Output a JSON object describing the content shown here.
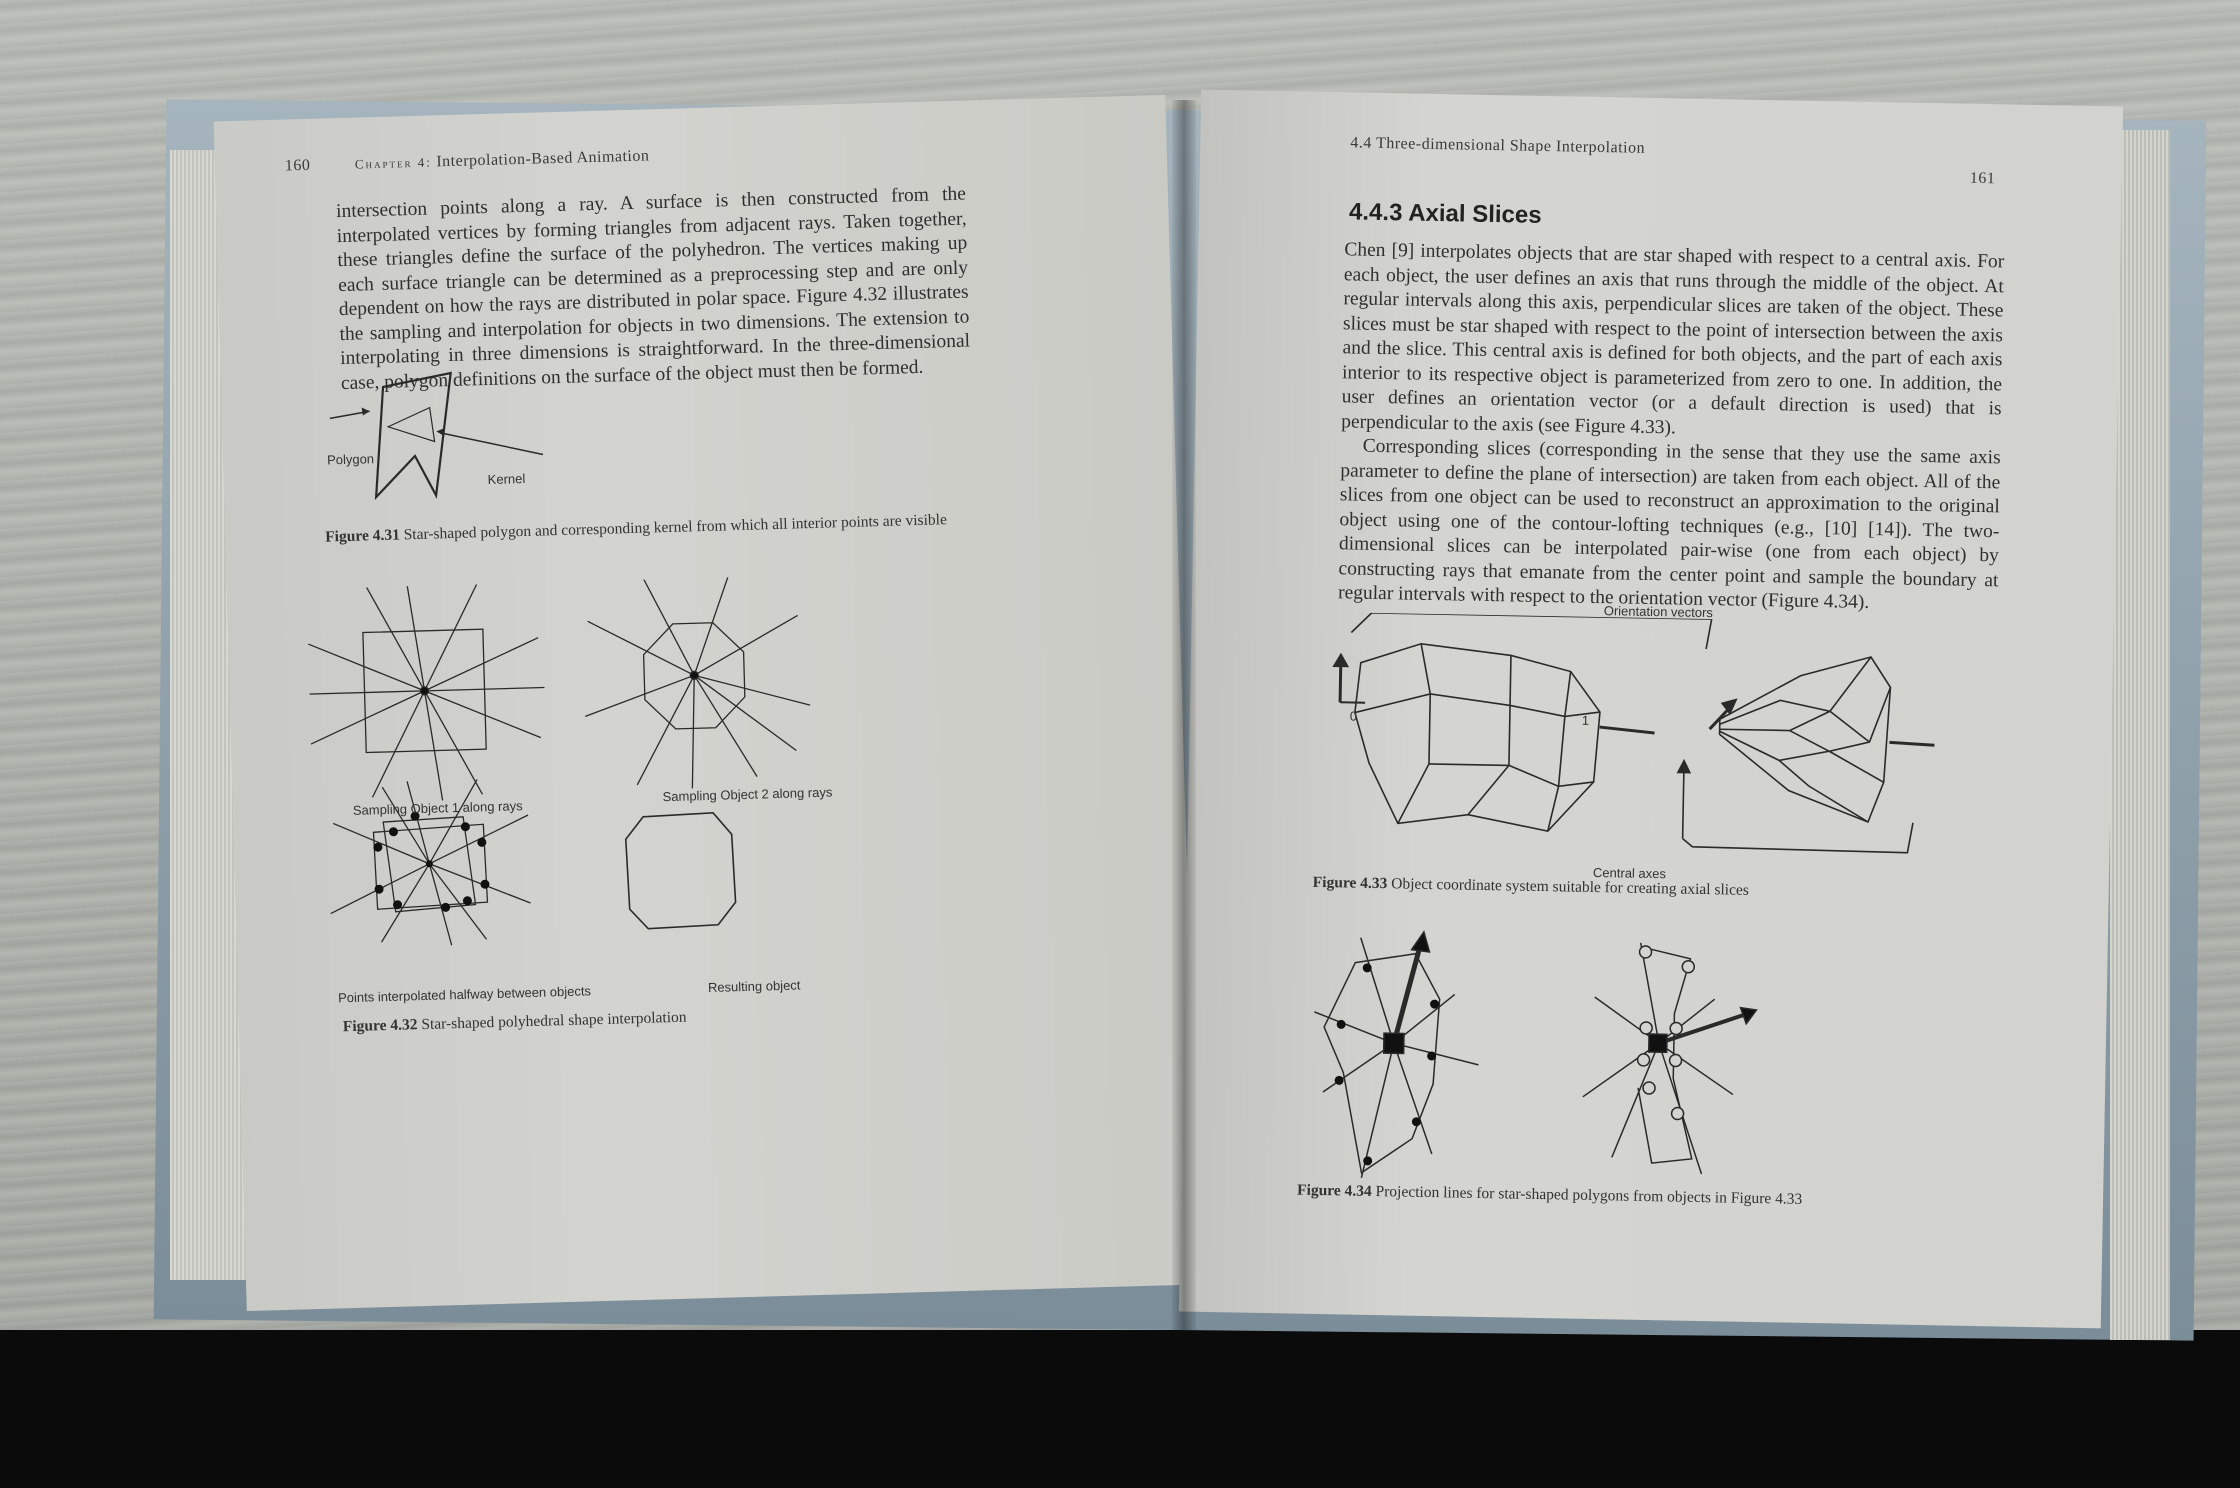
{
  "left_page": {
    "page_number": "160",
    "chapter_label": "Chapter 4:",
    "chapter_title": "Interpolation-Based Animation",
    "paragraph": "intersection points along a ray. A surface is then constructed from the interpolated vertices by forming triangles from adjacent rays. Taken together, these triangles define the surface of the polyhedron. The vertices making up each surface triangle can be determined as a preprocessing step and are only dependent on how the rays are distributed in polar space. Figure 4.32 illustrates the sampling and interpolation for objects in two dimensions. The extension to interpolating in three dimensions is straightforward. In the three-dimensional case, polygon definitions on the surface of the object must then be formed.",
    "figure_431": {
      "label_polygon": "Polygon",
      "label_kernel": "Kernel",
      "caption_num": "Figure 4.31",
      "caption_text": "Star-shaped polygon and corresponding kernel from which all interior points are visible"
    },
    "figure_432": {
      "sub1": "Sampling Object 1 along rays",
      "sub2": "Sampling Object 2 along rays",
      "sub3": "Points interpolated halfway between objects",
      "sub4": "Resulting object",
      "caption_num": "Figure 4.32",
      "caption_text": "Star-shaped polyhedral shape interpolation"
    }
  },
  "right_page": {
    "running_head": "4.4 Three-dimensional Shape Interpolation",
    "page_number": "161",
    "section_title": "4.4.3 Axial Slices",
    "paragraph1": "Chen [9] interpolates objects that are star shaped with respect to a central axis. For each object, the user defines an axis that runs through the middle of the object. At regular intervals along this axis, perpendicular slices are taken of the object. These slices must be star shaped with respect to the point of intersection between the axis and the slice. This central axis is defined for both objects, and the part of each axis interior to its respective object is parameterized from zero to one. In addition, the user defines an orientation vector (or a default direction is used) that is perpendicular to the axis (see Figure 4.33).",
    "paragraph2": "Corresponding slices (corresponding in the sense that they use the same axis parameter to define the plane of intersection) are taken from each object. All of the slices from one object can be used to reconstruct an approximation to the original object using one of the contour-lofting techniques (e.g., [10] [14]). The two-dimensional slices can be interpolated pair-wise (one from each object) by constructing rays that emanate from the center point and sample the boundary at regular intervals with respect to the orientation vector (Figure 4.34).",
    "figure_433": {
      "label_orientation": "Orientation vectors",
      "label_central": "Central axes",
      "label_zero": "0",
      "label_one": "1",
      "caption_num": "Figure 4.33",
      "caption_text": "Object coordinate system suitable for creating axial slices"
    },
    "figure_434": {
      "caption_num": "Figure 4.34",
      "caption_text": "Projection lines for star-shaped polygons from objects in Figure 4.33"
    }
  }
}
